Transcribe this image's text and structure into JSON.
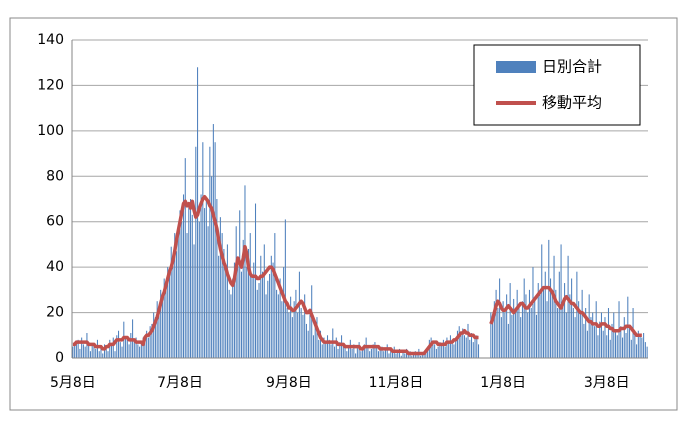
{
  "chart_data": {
    "type": "bar",
    "categories": [
      "5月8日",
      null,
      null,
      null,
      null,
      null,
      null,
      null,
      null,
      null,
      null,
      null,
      null,
      null,
      null,
      null,
      null,
      null,
      null,
      null,
      null,
      null,
      null,
      null,
      null,
      null,
      null,
      null,
      null,
      null,
      null,
      null,
      null,
      null,
      null,
      null,
      null,
      null,
      null,
      null,
      null,
      null,
      null,
      null,
      null,
      null,
      null,
      null,
      null,
      null,
      null,
      null,
      null,
      null,
      null,
      null,
      null,
      null,
      null,
      null,
      null,
      "7月8日",
      null,
      null,
      null,
      null,
      null,
      null,
      null,
      null,
      null,
      null,
      null,
      null,
      null,
      null,
      null,
      null,
      null,
      null,
      null,
      null,
      null,
      null,
      null,
      null,
      null,
      null,
      null,
      null,
      null,
      null,
      null,
      null,
      null,
      null,
      null,
      null,
      null,
      null,
      null,
      null,
      null,
      null,
      null,
      null,
      null,
      null,
      null,
      null,
      null,
      null,
      null,
      null,
      null,
      null,
      null,
      null,
      null,
      null,
      null,
      null,
      null,
      "9月8日",
      null,
      null,
      null,
      null,
      null,
      null,
      null,
      null,
      null,
      null,
      null,
      null,
      null,
      null,
      null,
      null,
      null,
      null,
      null,
      null,
      null,
      null,
      null,
      null,
      null,
      null,
      null,
      null,
      null,
      null,
      null,
      null,
      null,
      null,
      null,
      null,
      null,
      null,
      null,
      null,
      null,
      null,
      null,
      null,
      null,
      null,
      null,
      null,
      null,
      null,
      null,
      null,
      null,
      null,
      null,
      null,
      null,
      null,
      null,
      null,
      "11月8日",
      null,
      null,
      null,
      null,
      null,
      null,
      null,
      null,
      null,
      null,
      null,
      null,
      null,
      null,
      null,
      null,
      null,
      null,
      null,
      null,
      null,
      null,
      null,
      null,
      null,
      null,
      null,
      null,
      null,
      null,
      null,
      null,
      null,
      null,
      null,
      null,
      null,
      null,
      null,
      null,
      null,
      null,
      null,
      null,
      null,
      null,
      null,
      null,
      null,
      null,
      null,
      null,
      null,
      null,
      null,
      null,
      null,
      null,
      null,
      null,
      "1月8日",
      null,
      null,
      null,
      null,
      null,
      null,
      null,
      null,
      null,
      null,
      null,
      null,
      null,
      null,
      null,
      null,
      null,
      null,
      null,
      null,
      null,
      null,
      null,
      null,
      null,
      null,
      null,
      null,
      null,
      null,
      null,
      null,
      null,
      null,
      null,
      null,
      null,
      null,
      null,
      null,
      null,
      null,
      null,
      null,
      null,
      null,
      null,
      null,
      null,
      null,
      null,
      null,
      null,
      null,
      null,
      null,
      null,
      null,
      "3月8日",
      null,
      null,
      null,
      null,
      null,
      null,
      null,
      null,
      null,
      null,
      null,
      null,
      null,
      null,
      null,
      null,
      null,
      null,
      null,
      null,
      null,
      null,
      null
    ],
    "series": [
      {
        "name": "日別合計",
        "type": "bar",
        "color": "#4f81bd",
        "values": [
          5,
          7,
          6,
          8,
          4,
          9,
          6,
          5,
          11,
          7,
          3,
          6,
          5,
          4,
          8,
          3,
          5,
          2,
          6,
          4,
          3,
          8,
          6,
          9,
          3,
          10,
          12,
          7,
          5,
          16,
          9,
          8,
          6,
          11,
          17,
          8,
          9,
          6,
          5,
          7,
          9,
          10,
          12,
          9,
          14,
          15,
          20,
          18,
          25,
          22,
          30,
          27,
          35,
          33,
          40,
          38,
          49,
          42,
          55,
          47,
          58,
          65,
          60,
          72,
          88,
          55,
          68,
          70,
          63,
          50,
          93,
          128,
          60,
          72,
          95,
          66,
          70,
          58,
          93,
          80,
          103,
          95,
          70,
          45,
          62,
          55,
          48,
          40,
          50,
          30,
          28,
          35,
          42,
          58,
          44,
          65,
          38,
          52,
          76,
          40,
          48,
          55,
          36,
          42,
          68,
          30,
          33,
          45,
          38,
          50,
          28,
          34,
          37,
          45,
          42,
          55,
          30,
          28,
          35,
          25,
          40,
          61,
          22,
          20,
          27,
          18,
          25,
          30,
          20,
          38,
          22,
          19,
          28,
          15,
          12,
          20,
          32,
          10,
          14,
          18,
          8,
          12,
          6,
          9,
          7,
          10,
          8,
          6,
          13,
          5,
          9,
          4,
          7,
          10,
          5,
          6,
          3,
          5,
          8,
          4,
          6,
          2,
          5,
          7,
          3,
          4,
          6,
          9,
          5,
          3,
          4,
          6,
          7,
          5,
          3,
          4,
          5,
          3,
          4,
          6,
          2,
          4,
          3,
          5,
          2,
          3,
          4,
          1,
          3,
          2,
          4,
          2,
          3,
          1,
          2,
          3,
          2,
          4,
          1,
          2,
          3,
          3,
          5,
          8,
          9,
          7,
          6,
          4,
          5,
          7,
          6,
          8,
          5,
          9,
          7,
          10,
          8,
          6,
          9,
          12,
          14,
          11,
          13,
          10,
          9,
          15,
          8,
          11,
          7,
          9,
          10,
          6,
          null,
          null,
          null,
          null,
          null,
          null,
          20,
          18,
          25,
          30,
          22,
          35,
          18,
          25,
          20,
          28,
          15,
          33,
          19,
          26,
          22,
          30,
          24,
          18,
          25,
          35,
          28,
          20,
          30,
          22,
          40,
          26,
          19,
          33,
          28,
          50,
          30,
          38,
          25,
          52,
          35,
          28,
          45,
          30,
          22,
          38,
          50,
          25,
          33,
          20,
          45,
          28,
          35,
          22,
          18,
          38,
          25,
          20,
          30,
          15,
          22,
          12,
          28,
          18,
          20,
          14,
          25,
          10,
          16,
          20,
          12,
          18,
          10,
          22,
          8,
          15,
          20,
          12,
          10,
          25,
          14,
          9,
          18,
          11,
          27,
          13,
          8,
          22,
          10,
          6,
          12,
          10,
          9,
          11,
          7,
          5
        ]
      },
      {
        "name": "移動平均",
        "type": "line",
        "color": "#c0504d",
        "values": [
          6,
          6,
          7,
          7,
          7,
          7,
          7,
          7,
          7,
          6,
          6,
          6,
          6,
          5,
          5,
          5,
          5,
          4,
          4,
          5,
          5,
          6,
          6,
          6,
          7,
          8,
          8,
          8,
          8,
          9,
          9,
          9,
          8,
          8,
          8,
          8,
          7,
          7,
          7,
          7,
          6,
          9,
          10,
          10,
          11,
          12,
          14,
          16,
          18,
          21,
          24,
          27,
          29,
          32,
          35,
          38,
          40,
          43,
          47,
          52,
          56,
          60,
          64,
          68,
          69,
          67,
          68,
          66,
          69,
          65,
          62,
          63,
          66,
          68,
          70,
          71,
          70,
          69,
          67,
          66,
          63,
          60,
          57,
          52,
          48,
          45,
          42,
          40,
          37,
          35,
          33,
          32,
          35,
          40,
          44,
          42,
          40,
          44,
          49,
          46,
          40,
          37,
          36,
          36,
          36,
          35,
          35,
          36,
          36,
          37,
          38,
          39,
          40,
          40,
          39,
          37,
          35,
          33,
          31,
          29,
          27,
          25,
          24,
          22,
          22,
          21,
          21,
          22,
          23,
          24,
          25,
          24,
          22,
          20,
          20,
          21,
          19,
          17,
          15,
          13,
          11,
          9,
          8,
          7,
          7,
          7,
          7,
          7,
          7,
          7,
          7,
          6,
          6,
          6,
          6,
          5,
          5,
          5,
          5,
          5,
          5,
          5,
          5,
          5,
          4,
          4,
          5,
          5,
          5,
          5,
          5,
          5,
          5,
          5,
          5,
          4,
          4,
          4,
          4,
          4,
          4,
          4,
          3,
          3,
          3,
          3,
          3,
          3,
          3,
          3,
          3,
          2,
          2,
          2,
          2,
          2,
          2,
          2,
          2,
          2,
          2,
          3,
          4,
          5,
          6,
          7,
          7,
          7,
          6,
          6,
          6,
          6,
          6,
          7,
          7,
          7,
          7,
          8,
          8,
          9,
          10,
          11,
          11,
          12,
          11,
          11,
          10,
          10,
          10,
          9,
          9,
          9,
          null,
          null,
          null,
          null,
          null,
          null,
          15,
          17,
          20,
          23,
          25,
          24,
          22,
          21,
          21,
          22,
          23,
          22,
          21,
          20,
          21,
          22,
          23,
          24,
          24,
          23,
          22,
          22,
          23,
          24,
          25,
          26,
          27,
          28,
          29,
          30,
          31,
          31,
          31,
          31,
          30,
          29,
          27,
          25,
          24,
          23,
          22,
          24,
          26,
          27,
          26,
          25,
          24,
          24,
          23,
          22,
          21,
          20,
          20,
          19,
          18,
          17,
          16,
          16,
          15,
          15,
          15,
          14,
          14,
          15,
          15,
          15,
          14,
          14,
          13,
          13,
          12,
          12,
          12,
          12,
          13,
          13,
          13,
          14,
          14,
          14,
          13,
          12,
          11,
          10,
          10,
          10,
          10,
          null,
          null,
          null
        ]
      }
    ],
    "ylim": [
      0,
      140
    ],
    "yticks": [
      0,
      20,
      40,
      60,
      80,
      100,
      120,
      140
    ],
    "grid": true,
    "legend": "upper right"
  }
}
